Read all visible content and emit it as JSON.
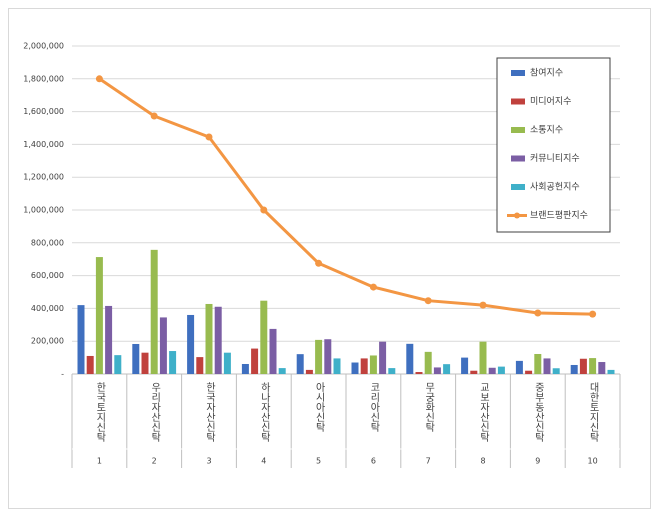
{
  "chart_data": {
    "type": "bar",
    "categories": [
      "한국토지신탁",
      "우리자산신탁",
      "한국자산신탁",
      "하나자산신탁",
      "아시아신탁",
      "코리아신탁",
      "무궁화신탁",
      "교보자산신탁",
      "중부동산신탁",
      "대한토지신탁"
    ],
    "ranks": [
      1,
      2,
      3,
      4,
      5,
      6,
      7,
      8,
      9,
      10
    ],
    "ylim": [
      0,
      2000000
    ],
    "yticks": [
      {
        "value": 0,
        "label": "-"
      },
      {
        "value": 200000,
        "label": "200,000"
      },
      {
        "value": 400000,
        "label": "400,000"
      },
      {
        "value": 600000,
        "label": "600,000"
      },
      {
        "value": 800000,
        "label": "800,000"
      },
      {
        "value": 1000000,
        "label": "1,000,000"
      },
      {
        "value": 1200000,
        "label": "1,200,000"
      },
      {
        "value": 1400000,
        "label": "1,400,000"
      },
      {
        "value": 1600000,
        "label": "1,600,000"
      },
      {
        "value": 1800000,
        "label": "1,800,000"
      },
      {
        "value": 2000000,
        "label": "2,000,000"
      }
    ],
    "grid": true,
    "legend": "top-right",
    "series": [
      {
        "name": "참여지수",
        "type": "bar",
        "color": "#3f6fbf",
        "values": [
          420000,
          183000,
          360000,
          61000,
          121000,
          70000,
          184000,
          100000,
          80000,
          55000
        ]
      },
      {
        "name": "미디어지수",
        "type": "bar",
        "color": "#c0413d",
        "values": [
          110000,
          130000,
          103000,
          155000,
          25000,
          95000,
          12000,
          20000,
          20000,
          93000
        ]
      },
      {
        "name": "소통지수",
        "type": "bar",
        "color": "#98bb4f",
        "values": [
          713000,
          757000,
          427000,
          447000,
          208000,
          113000,
          135000,
          197000,
          122000,
          97000
        ]
      },
      {
        "name": "커뮤니티지수",
        "type": "bar",
        "color": "#7b5ea4",
        "values": [
          415000,
          345000,
          410000,
          275000,
          212000,
          197000,
          40000,
          38000,
          95000,
          73000
        ]
      },
      {
        "name": "사회공헌지수",
        "type": "bar",
        "color": "#3fb0c9",
        "values": [
          115000,
          140000,
          130000,
          36000,
          95000,
          36000,
          60000,
          45000,
          35000,
          25000
        ]
      },
      {
        "name": "브랜드평판지수",
        "type": "line",
        "color": "#f39643",
        "values": [
          1800000,
          1573000,
          1445000,
          1000000,
          675000,
          530000,
          447000,
          420000,
          372000,
          365000
        ]
      }
    ]
  }
}
